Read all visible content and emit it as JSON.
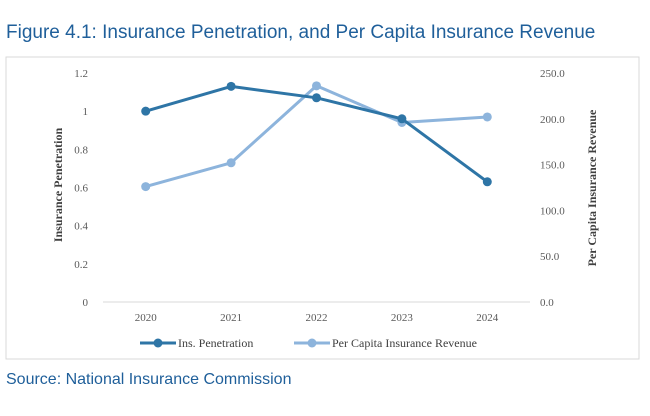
{
  "figure": {
    "title": "Figure 4.1: Insurance Penetration, and Per Capita Insurance Revenue",
    "source": "Source: National Insurance Commission"
  },
  "chart_data": {
    "type": "line",
    "title": "Figure 4.1: Insurance Penetration, and Per Capita Insurance Revenue",
    "x": [
      "2020",
      "2021",
      "2022",
      "2023",
      "2024"
    ],
    "series": [
      {
        "name": "Ins. Penetration",
        "axis": "left",
        "color": "#2e75a6",
        "values": [
          1.0,
          1.13,
          1.07,
          0.96,
          0.63
        ]
      },
      {
        "name": "Per Capita Insurance Revenue",
        "axis": "right",
        "color": "#8db4dc",
        "values": [
          126,
          152,
          236,
          196,
          202
        ]
      }
    ],
    "y_left": {
      "label": "Insurance Penetration",
      "range": [
        0,
        1.2
      ],
      "ticks": [
        "0",
        "0.2",
        "0.4",
        "0.6",
        "0.8",
        "1",
        "1.2"
      ]
    },
    "y_right": {
      "label": "Per Capita Insurance Revenue",
      "range": [
        0,
        250
      ],
      "ticks": [
        "0.0",
        "50.0",
        "100.0",
        "150.0",
        "200.0",
        "250.0"
      ]
    },
    "grid": false,
    "legend": "bottom"
  }
}
